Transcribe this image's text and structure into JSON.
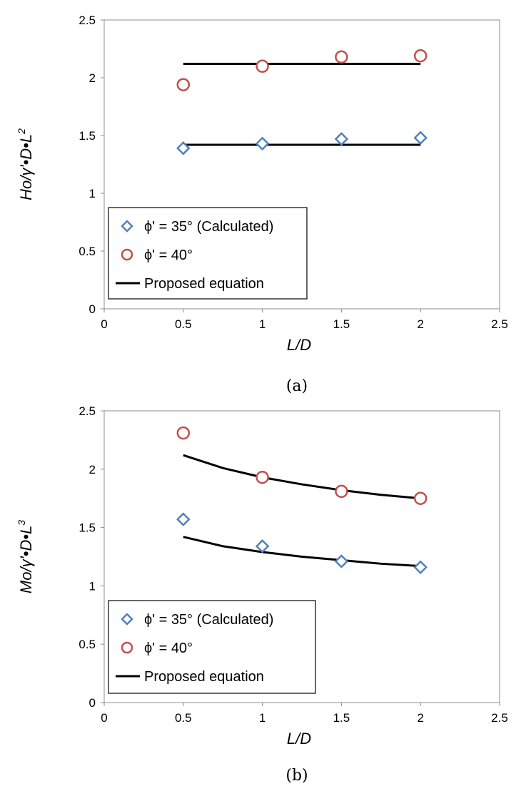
{
  "chart_data": [
    {
      "type": "scatter",
      "caption": "(a)",
      "xlabel": "L/D",
      "ylabel": {
        "main": "Ho/γ'•D•L",
        "sup": "2"
      },
      "xlim": [
        0,
        2.5
      ],
      "ylim": [
        0,
        2.5
      ],
      "x_ticks": [
        "0",
        "0.5",
        "1",
        "1.5",
        "2",
        "2.5"
      ],
      "y_ticks": [
        "0",
        "0.5",
        "1",
        "1.5",
        "2",
        "2.5"
      ],
      "grid": false,
      "legend_position": "bottom-left",
      "series": [
        {
          "name": "ϕ' = 35° (Calculated)",
          "marker": "diamond",
          "color": "#4f81bd",
          "x": [
            0.5,
            1.0,
            1.5,
            2.0
          ],
          "y": [
            1.39,
            1.43,
            1.47,
            1.48
          ]
        },
        {
          "name": "ϕ' = 40°",
          "marker": "circle",
          "color": "#c0504d",
          "x": [
            0.5,
            1.0,
            1.5,
            2.0
          ],
          "y": [
            1.94,
            2.1,
            2.18,
            2.19
          ]
        },
        {
          "name": "Proposed equation",
          "marker": "line",
          "color": "#000000",
          "lines": [
            {
              "x": [
                0.5,
                2.0
              ],
              "y": [
                1.42,
                1.42
              ]
            },
            {
              "x": [
                0.5,
                2.0
              ],
              "y": [
                2.12,
                2.12
              ]
            }
          ]
        }
      ]
    },
    {
      "type": "scatter",
      "caption": "(b)",
      "xlabel": "L/D",
      "ylabel": {
        "main": "Mo/γ'•D•L",
        "sup": "3"
      },
      "xlim": [
        0,
        2.5
      ],
      "ylim": [
        0,
        2.5
      ],
      "x_ticks": [
        "0",
        "0.5",
        "1",
        "1.5",
        "2",
        "2.5"
      ],
      "y_ticks": [
        "0",
        "0.5",
        "1",
        "1.5",
        "2",
        "2.5"
      ],
      "grid": false,
      "legend_position": "bottom-left",
      "series": [
        {
          "name": "ϕ' = 35° (Calculated)",
          "marker": "diamond",
          "color": "#4f81bd",
          "x": [
            0.5,
            1.0,
            1.5,
            2.0
          ],
          "y": [
            1.57,
            1.34,
            1.21,
            1.16
          ]
        },
        {
          "name": "ϕ' = 40°",
          "marker": "circle",
          "color": "#c0504d",
          "x": [
            0.5,
            1.0,
            1.5,
            2.0
          ],
          "y": [
            2.31,
            1.93,
            1.81,
            1.75
          ]
        },
        {
          "name": "Proposed equation",
          "marker": "line",
          "color": "#000000",
          "lines": [
            {
              "x": [
                0.5,
                0.75,
                1.0,
                1.25,
                1.5,
                1.75,
                2.0
              ],
              "y": [
                1.42,
                1.34,
                1.29,
                1.25,
                1.22,
                1.19,
                1.17
              ]
            },
            {
              "x": [
                0.5,
                0.75,
                1.0,
                1.25,
                1.5,
                1.75,
                2.0
              ],
              "y": [
                2.12,
                2.01,
                1.93,
                1.87,
                1.82,
                1.78,
                1.75
              ]
            }
          ]
        }
      ]
    }
  ]
}
